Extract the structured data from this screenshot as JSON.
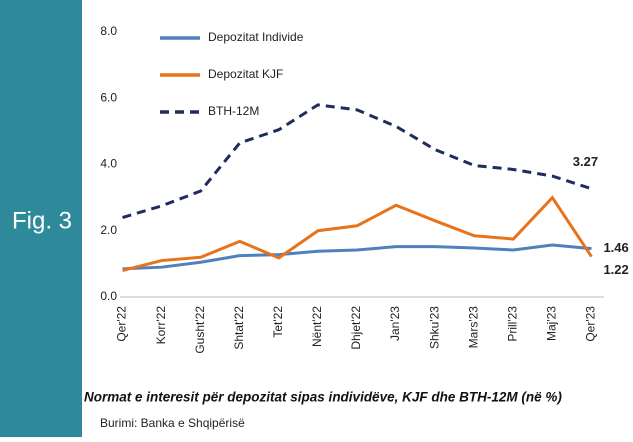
{
  "chart_data": {
    "type": "line",
    "figure_label": "Fig. 3",
    "title": "Normat e interesit për depozitat sipas individëve, KJF dhe BTH-12M (në %)",
    "source": "Burimi: Banka e Shqipërisë",
    "categories": [
      "Qer'22",
      "Korr'22",
      "Gusht'22",
      "Shtat'22",
      "Tet'22",
      "Nënt'22",
      "Dhjet'22",
      "Jan'23",
      "Shku'23",
      "Mars'23",
      "Prill'23",
      "Maj'23",
      "Qer'23"
    ],
    "series": [
      {
        "name": "Depozitat Individe",
        "color": "#4f81bd",
        "dash": false,
        "values": [
          0.85,
          0.9,
          1.05,
          1.25,
          1.28,
          1.38,
          1.42,
          1.52,
          1.52,
          1.48,
          1.42,
          1.57,
          1.46
        ],
        "end_label": "1.46"
      },
      {
        "name": "Depozitat KJF",
        "color": "#e8731c",
        "dash": false,
        "values": [
          0.8,
          1.1,
          1.2,
          1.68,
          1.18,
          2.0,
          2.15,
          2.77,
          2.3,
          1.85,
          1.75,
          3.0,
          1.22
        ],
        "end_label": "1.22"
      },
      {
        "name": "BTH-12M",
        "color": "#1f2d5c",
        "dash": true,
        "values": [
          2.4,
          2.75,
          3.2,
          4.65,
          5.05,
          5.8,
          5.65,
          5.15,
          4.45,
          3.97,
          3.85,
          3.65,
          3.27
        ],
        "end_label": "3.27"
      }
    ],
    "ylim": [
      0,
      8
    ],
    "yticks": [
      {
        "value": 0,
        "label": "0.0"
      },
      {
        "value": 2,
        "label": "2.0"
      },
      {
        "value": 4,
        "label": "4.0"
      },
      {
        "value": 6,
        "label": "6.0"
      },
      {
        "value": 8,
        "label": "8.0"
      }
    ]
  }
}
